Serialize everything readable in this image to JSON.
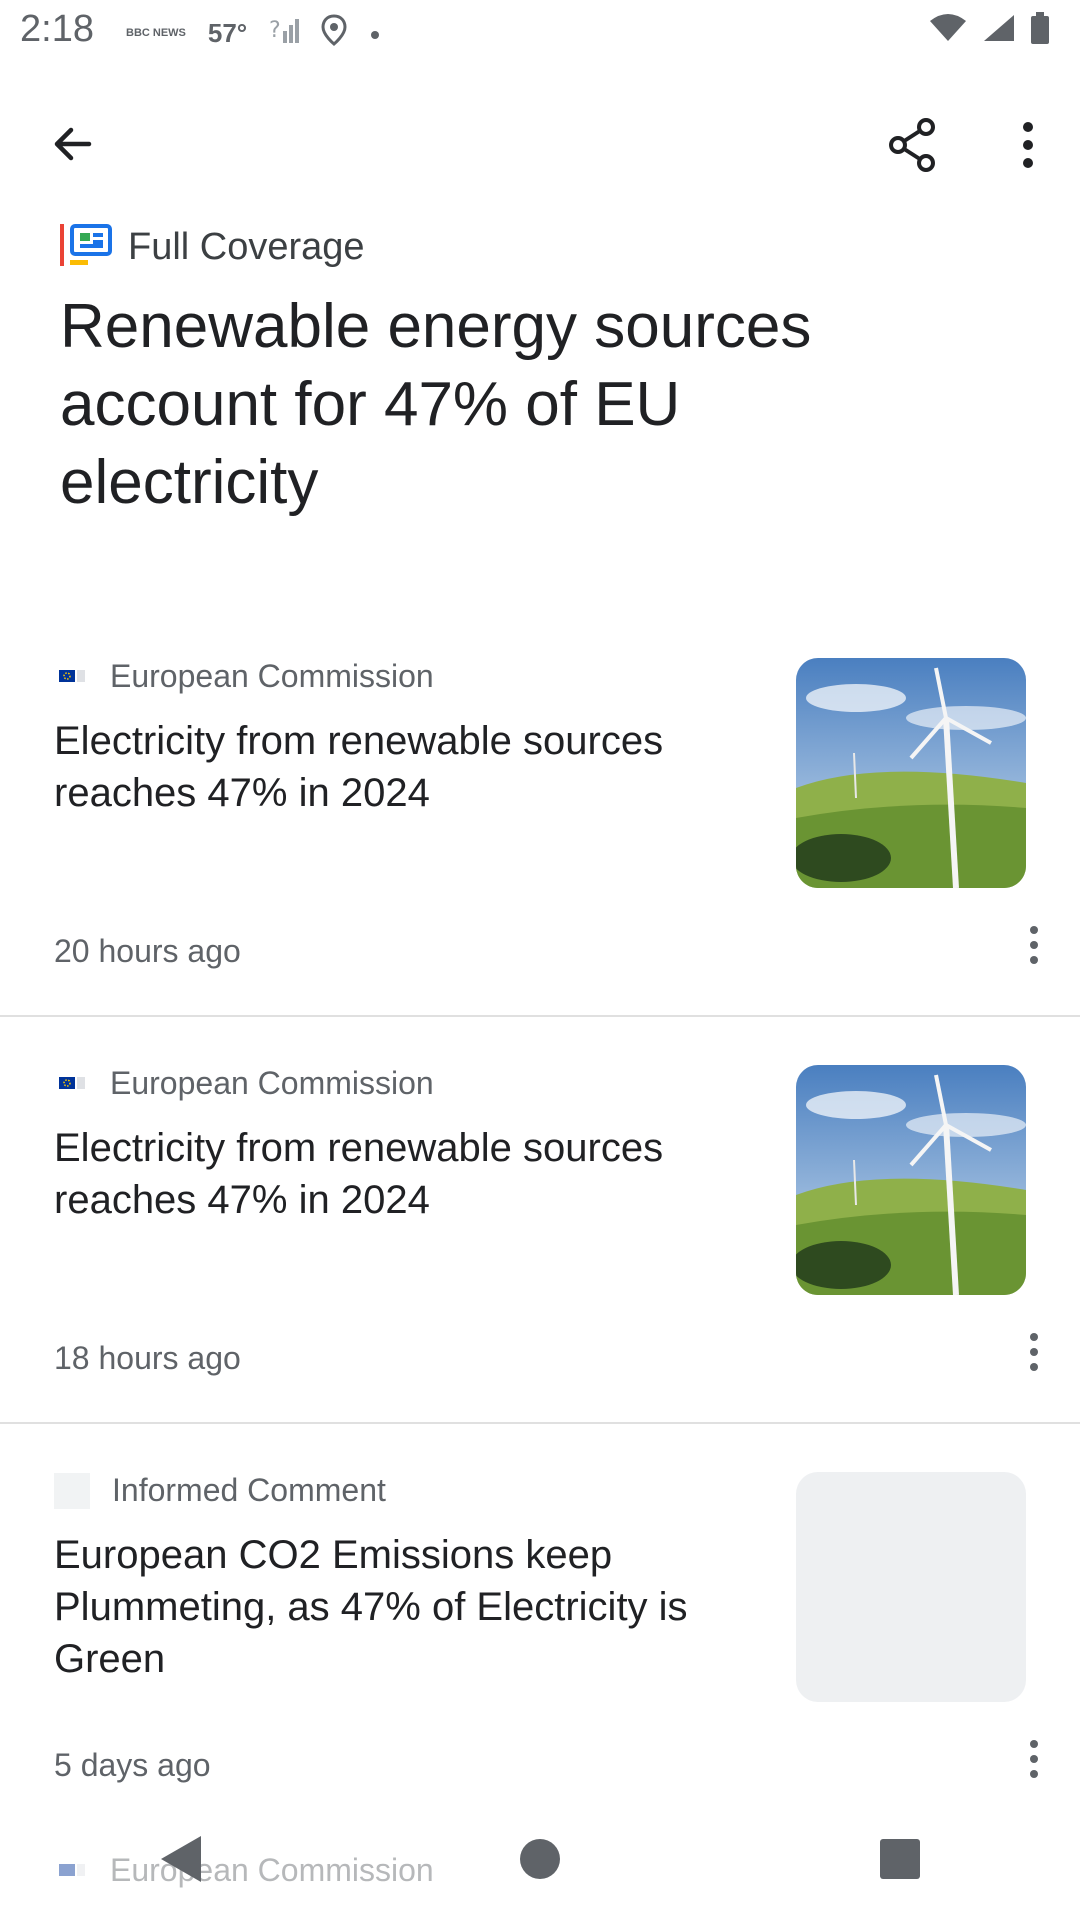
{
  "status_bar": {
    "time": "2:18",
    "temperature": "57°",
    "news_badge": "BBC NEWS"
  },
  "top_bar": {
    "back_icon": "arrow-back-icon",
    "share_icon": "share-icon",
    "more_icon": "more-vert-icon"
  },
  "full_coverage": {
    "icon": "full-coverage-icon",
    "label": "Full Coverage"
  },
  "headline": "Renewable energy sources account for 47% of EU electricity",
  "articles": [
    {
      "source": "European Commission",
      "title": "Electricity from renewable sources reaches 47% in 2024",
      "time": "20 hours ago",
      "thumbnail": "wind-turbine-image"
    },
    {
      "source": "European Commission",
      "title": "Electricity from renewable sources reaches 47% in 2024",
      "time": "18 hours ago",
      "thumbnail": "wind-turbine-image"
    },
    {
      "source": "Informed Comment",
      "title": "European CO2 Emissions keep Plummeting, as 47% of Electricity is Green",
      "time": "5 days ago",
      "thumbnail": "placeholder-image"
    }
  ],
  "peek": {
    "source": "European Commission"
  },
  "nav_bar": {
    "back_icon": "nav-back-icon",
    "home_icon": "nav-home-icon",
    "recents_icon": "nav-recents-icon"
  },
  "colors": {
    "text_primary": "#202124",
    "text_secondary": "#5f6368",
    "eu_blue": "#003399",
    "google_blue": "#1a73e8"
  }
}
